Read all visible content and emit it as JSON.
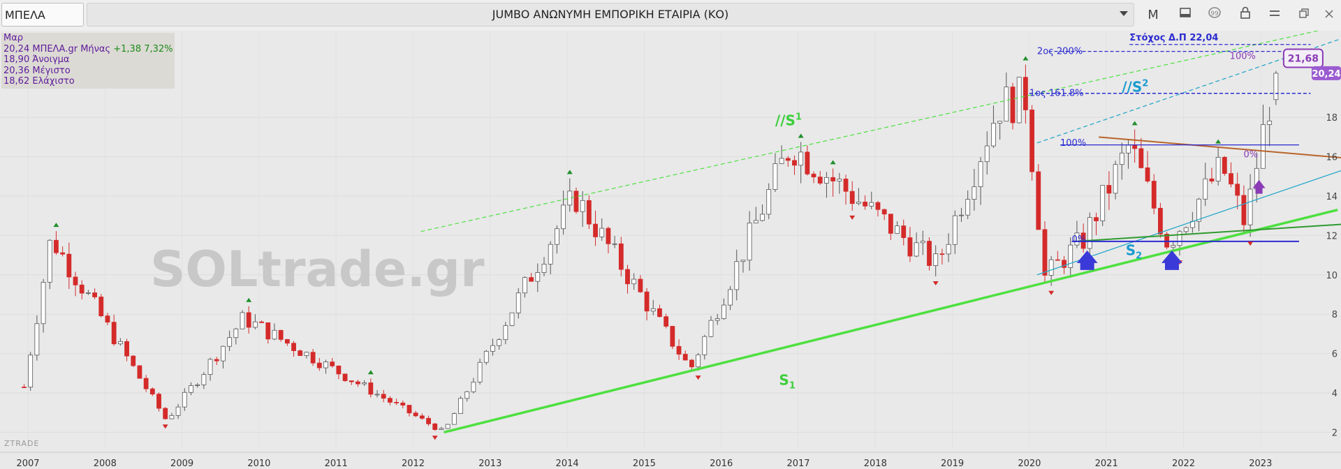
{
  "header": {
    "symbol": "ΜΠΕΛΑ",
    "title": "JUMBO ΑΝΩΝΥΜΗ ΕΜΠΟΡΙΚΗ ΕΤΑΙΡΙΑ (ΚΟ)",
    "period_button": "M",
    "icons": [
      "chevron-down-icon",
      "period-button",
      "layout-icon",
      "chat-icon",
      "lock-icon",
      "menu-icon",
      "restore-icon",
      "close-icon"
    ]
  },
  "ohlc_panel": {
    "date": "Μαρ",
    "close_line": "20,24 ΜΠΕΛΑ.gr Μήνας",
    "change": "+1,38 7,32%",
    "open_line": "18,90 Άνοιγμα",
    "high_line": "20,36 Μέγιστο",
    "low_line": "18,62 Ελάχιστο"
  },
  "watermark": "SOLtrade.gr",
  "brand": "ZTRADE",
  "colors": {
    "up_candle": "#ffffff",
    "down_candle": "#d42a2a",
    "channel_green": "#4ee040",
    "s2_line": "#29a7c9",
    "fib_blue": "#2b2bd0",
    "resistance_brown": "#b8642a",
    "purple": "#8a3bb5"
  },
  "chart_data": {
    "type": "candlestick",
    "interval": "monthly",
    "x_ticks": [
      "2007",
      "2008",
      "2009",
      "2010",
      "2011",
      "2012",
      "2013",
      "2014",
      "2015",
      "2016",
      "2017",
      "2018",
      "2019",
      "2020",
      "2021",
      "2022",
      "2023"
    ],
    "y_ticks": [
      2,
      4,
      6,
      8,
      10,
      12,
      14,
      16,
      18
    ],
    "ylim": [
      1.2,
      22.4
    ],
    "xlim": [
      2006.95,
      2024.5
    ],
    "last_price_label": "20,24",
    "key_points": [
      {
        "x": 2007.3,
        "y": 11.9
      },
      {
        "x": 2008.8,
        "y": 2.6
      },
      {
        "x": 2009.8,
        "y": 7.8
      },
      {
        "x": 2012.4,
        "y": 2.0
      },
      {
        "x": 2014.1,
        "y": 14.0
      },
      {
        "x": 2015.6,
        "y": 5.2
      },
      {
        "x": 2016.9,
        "y": 16.6
      },
      {
        "x": 2018.8,
        "y": 10.5
      },
      {
        "x": 2019.6,
        "y": 18.6
      },
      {
        "x": 2019.95,
        "y": 19.0
      },
      {
        "x": 2020.2,
        "y": 9.9
      },
      {
        "x": 2020.7,
        "y": 11.8
      },
      {
        "x": 2021.3,
        "y": 16.6
      },
      {
        "x": 2021.8,
        "y": 11.6
      },
      {
        "x": 2022.5,
        "y": 15.5
      },
      {
        "x": 2022.8,
        "y": 12.6
      },
      {
        "x": 2023.0,
        "y": 16.6
      },
      {
        "x": 2023.2,
        "y": 20.24
      }
    ],
    "annotations": [
      {
        "text": "//S",
        "sub": "1",
        "x": 2016.7,
        "y": 17.6,
        "color": "#3ccf3c"
      },
      {
        "text": "S",
        "sub": "1",
        "x": 2016.75,
        "y": 4.4,
        "color": "#3ccf3c"
      },
      {
        "text": "//S",
        "sub": "2",
        "x": 2021.2,
        "y": 19.3,
        "color": "#1a9bd0"
      },
      {
        "text": "S",
        "sub": "2",
        "x": 2021.25,
        "y": 11.0,
        "color": "#1a9bd0"
      }
    ],
    "fib_labels": [
      {
        "text": "Στόχος Δ.Π 22,04",
        "x": 2021.3,
        "y": 22.04
      },
      {
        "text": "2ος 200%",
        "x": 2020.1,
        "y": 21.35
      },
      {
        "text": "1ος 161.8%",
        "x": 2020.0,
        "y": 19.22
      },
      {
        "text": "100%",
        "x": 2020.4,
        "y": 16.7
      },
      {
        "text": "0%",
        "x": 2020.55,
        "y": 11.8
      },
      {
        "text": "100%",
        "x": 2022.6,
        "y": 21.1
      },
      {
        "text": "0%",
        "x": 2022.78,
        "y": 16.1
      }
    ],
    "target_box": "21,68"
  }
}
